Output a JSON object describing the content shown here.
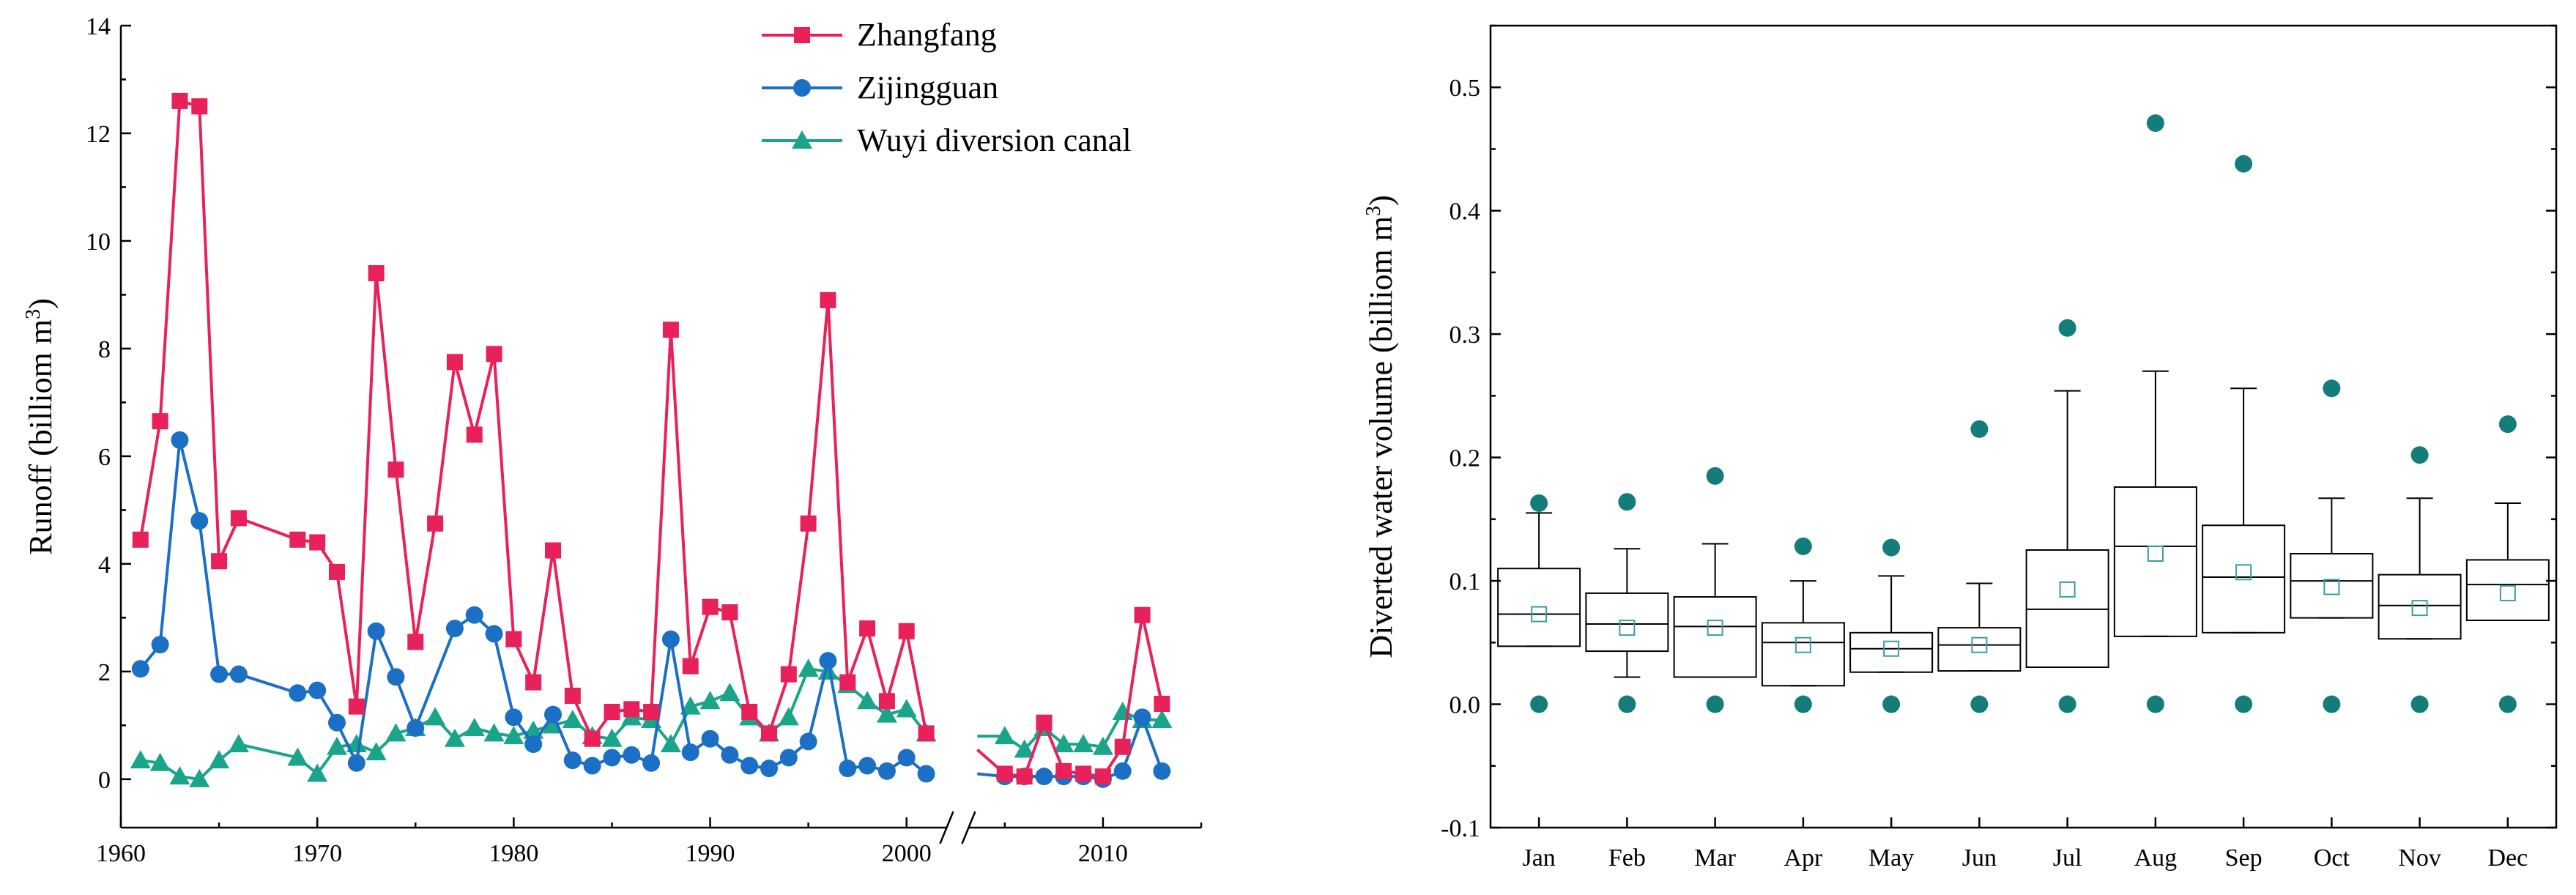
{
  "chart_data": [
    {
      "type": "line",
      "title": "",
      "xlabel": "",
      "ylabel": "Runoff (billiom m3)",
      "ylabel_main": "Runoff  (billiom m",
      "ylabel_sup": "3",
      "ylabel_close": ")",
      "xlim": [
        1960,
        2015
      ],
      "ylim": [
        -0.9,
        14
      ],
      "axis_break": [
        2001,
        2004
      ],
      "xticks": [
        1960,
        1970,
        1980,
        1990,
        2000,
        2010
      ],
      "yticks": [
        0,
        2,
        4,
        6,
        8,
        10,
        12,
        14
      ],
      "grid": false,
      "legend_position": "top-center",
      "series": [
        {
          "name": "Zhangfang",
          "color": "#e8215a",
          "marker": "square",
          "segments": [
            [
              [
                1961,
                4.45
              ],
              [
                1962,
                6.65
              ],
              [
                1963,
                12.6
              ],
              [
                1964,
                12.5
              ],
              [
                1965,
                4.05
              ],
              [
                1966,
                4.85
              ],
              [
                1969,
                4.45
              ],
              [
                1970,
                4.4
              ],
              [
                1971,
                3.85
              ],
              [
                1972,
                1.35
              ],
              [
                1973,
                9.4
              ],
              [
                1974,
                5.75
              ],
              [
                1975,
                2.55
              ],
              [
                1976,
                4.75
              ],
              [
                1977,
                7.75
              ],
              [
                1978,
                6.4
              ],
              [
                1979,
                7.9
              ],
              [
                1980,
                2.6
              ],
              [
                1981,
                1.8
              ],
              [
                1982,
                4.25
              ],
              [
                1983,
                1.55
              ],
              [
                1984,
                0.75
              ],
              [
                1985,
                1.25
              ],
              [
                1986,
                1.3
              ],
              [
                1987,
                1.25
              ],
              [
                1988,
                8.35
              ],
              [
                1989,
                2.1
              ],
              [
                1990,
                3.2
              ],
              [
                1991,
                3.1
              ],
              [
                1992,
                1.25
              ],
              [
                1993,
                0.85
              ],
              [
                1994,
                1.95
              ],
              [
                1995,
                4.75
              ],
              [
                1996,
                8.9
              ],
              [
                1997,
                1.8
              ],
              [
                1998,
                2.8
              ],
              [
                1999,
                1.45
              ],
              [
                2000,
                2.75
              ],
              [
                2001,
                0.85
              ]
            ],
            [
              [
                2003.6,
                0.55
              ],
              [
                2005,
                0.1
              ],
              [
                2006,
                0.05
              ],
              [
                2007,
                1.05
              ],
              [
                2008,
                0.15
              ],
              [
                2009,
                0.1
              ],
              [
                2010,
                0.05
              ],
              [
                2011,
                0.6
              ],
              [
                2012,
                3.05
              ],
              [
                2013,
                1.4
              ]
            ]
          ]
        },
        {
          "name": "Zijingguan",
          "color": "#1b6fc4",
          "marker": "circle",
          "segments": [
            [
              [
                1961,
                2.05
              ],
              [
                1962,
                2.5
              ],
              [
                1963,
                6.3
              ],
              [
                1964,
                4.8
              ],
              [
                1965,
                1.95
              ],
              [
                1966,
                1.95
              ],
              [
                1969,
                1.6
              ],
              [
                1970,
                1.65
              ],
              [
                1971,
                1.05
              ],
              [
                1972,
                0.3
              ],
              [
                1973,
                2.75
              ],
              [
                1974,
                1.9
              ],
              [
                1975,
                0.95
              ],
              [
                1977,
                2.8
              ],
              [
                1978,
                3.05
              ],
              [
                1979,
                2.7
              ],
              [
                1980,
                1.15
              ],
              [
                1981,
                0.65
              ],
              [
                1982,
                1.2
              ],
              [
                1983,
                0.35
              ],
              [
                1984,
                0.25
              ],
              [
                1985,
                0.4
              ],
              [
                1986,
                0.45
              ],
              [
                1987,
                0.3
              ],
              [
                1988,
                2.6
              ],
              [
                1989,
                0.5
              ],
              [
                1990,
                0.75
              ],
              [
                1991,
                0.45
              ],
              [
                1992,
                0.25
              ],
              [
                1993,
                0.2
              ],
              [
                1994,
                0.4
              ],
              [
                1995,
                0.7
              ],
              [
                1996,
                2.2
              ],
              [
                1997,
                0.2
              ],
              [
                1998,
                0.25
              ],
              [
                1999,
                0.15
              ],
              [
                2000,
                0.4
              ],
              [
                2001,
                0.1
              ]
            ],
            [
              [
                2003.6,
                0.1
              ],
              [
                2005,
                0.05
              ],
              [
                2006,
                0.05
              ],
              [
                2007,
                0.05
              ],
              [
                2008,
                0.05
              ],
              [
                2009,
                0.05
              ],
              [
                2010,
                0.0
              ],
              [
                2011,
                0.15
              ],
              [
                2012,
                1.15
              ],
              [
                2013,
                0.15
              ]
            ]
          ]
        },
        {
          "name": "Wuyi diversion canal",
          "color": "#1aa58a",
          "marker": "triangle",
          "segments": [
            [
              [
                1961,
                0.35
              ],
              [
                1962,
                0.3
              ],
              [
                1963,
                0.05
              ],
              [
                1964,
                0.0
              ],
              [
                1965,
                0.35
              ],
              [
                1966,
                0.65
              ],
              [
                1969,
                0.4
              ],
              [
                1970,
                0.1
              ],
              [
                1971,
                0.6
              ],
              [
                1972,
                0.65
              ],
              [
                1973,
                0.5
              ],
              [
                1974,
                0.85
              ],
              [
                1975,
                0.95
              ],
              [
                1976,
                1.15
              ],
              [
                1977,
                0.75
              ],
              [
                1978,
                0.95
              ],
              [
                1979,
                0.85
              ],
              [
                1980,
                0.8
              ],
              [
                1981,
                0.9
              ],
              [
                1982,
                1.0
              ],
              [
                1983,
                1.1
              ],
              [
                1984,
                0.8
              ],
              [
                1985,
                0.75
              ],
              [
                1986,
                1.15
              ],
              [
                1987,
                1.1
              ],
              [
                1988,
                0.65
              ],
              [
                1989,
                1.35
              ],
              [
                1990,
                1.45
              ],
              [
                1991,
                1.6
              ],
              [
                1992,
                1.15
              ],
              [
                1993,
                0.85
              ],
              [
                1994,
                1.15
              ],
              [
                1995,
                2.05
              ],
              [
                1996,
                2.0
              ],
              [
                1997,
                1.75
              ],
              [
                1998,
                1.45
              ],
              [
                1999,
                1.2
              ],
              [
                2000,
                1.3
              ],
              [
                2001,
                0.85
              ]
            ],
            [
              [
                2003.6,
                0.8
              ],
              [
                2005,
                0.8
              ],
              [
                2006,
                0.55
              ],
              [
                2007,
                0.95
              ],
              [
                2008,
                0.65
              ],
              [
                2009,
                0.65
              ],
              [
                2010,
                0.6
              ],
              [
                2011,
                1.25
              ],
              [
                2012,
                1.1
              ],
              [
                2013,
                1.1
              ]
            ]
          ]
        }
      ]
    },
    {
      "type": "box",
      "title": "",
      "xlabel": "",
      "ylabel": "Diverted water volume (billiom m3)",
      "ylabel_main": "Diverted water volume (billiom m",
      "ylabel_sup": "3",
      "ylabel_close": ")",
      "ylim": [
        -0.1,
        0.55
      ],
      "yticks": [
        -0.1,
        0.0,
        0.1,
        0.2,
        0.3,
        0.4,
        0.5
      ],
      "ytick_labels": [
        "-0.1",
        "0.0",
        "0.1",
        "0.2",
        "0.3",
        "0.4",
        "0.5"
      ],
      "grid": false,
      "box_color": "#000000",
      "point_color": "#147d7a",
      "mean_color": "#3a9e9c",
      "categories": [
        "Jan",
        "Feb",
        "Mar",
        "Apr",
        "May",
        "Jun",
        "Jul",
        "Aug",
        "Sep",
        "Oct",
        "Nov",
        "Dec"
      ],
      "boxes": [
        {
          "min": 0.0,
          "whisker_low": 0.047,
          "q1": 0.047,
          "median": 0.073,
          "q3": 0.11,
          "whisker_high": 0.155,
          "max": 0.163,
          "mean": 0.073
        },
        {
          "min": 0.0,
          "whisker_low": 0.022,
          "q1": 0.043,
          "median": 0.065,
          "q3": 0.09,
          "whisker_high": 0.126,
          "max": 0.164,
          "mean": 0.062
        },
        {
          "min": 0.0,
          "whisker_low": 0.022,
          "q1": 0.022,
          "median": 0.063,
          "q3": 0.087,
          "whisker_high": 0.13,
          "max": 0.185,
          "mean": 0.062
        },
        {
          "min": 0.0,
          "whisker_low": 0.015,
          "q1": 0.015,
          "median": 0.05,
          "q3": 0.066,
          "whisker_high": 0.1,
          "max": 0.128,
          "mean": 0.048
        },
        {
          "min": 0.0,
          "whisker_low": 0.026,
          "q1": 0.026,
          "median": 0.045,
          "q3": 0.058,
          "whisker_high": 0.104,
          "max": 0.127,
          "mean": 0.045
        },
        {
          "min": 0.0,
          "whisker_low": 0.027,
          "q1": 0.027,
          "median": 0.048,
          "q3": 0.062,
          "whisker_high": 0.098,
          "max": 0.223,
          "mean": 0.048
        },
        {
          "min": 0.0,
          "whisker_low": 0.03,
          "q1": 0.03,
          "median": 0.077,
          "q3": 0.125,
          "whisker_high": 0.254,
          "max": 0.305,
          "mean": 0.093
        },
        {
          "min": 0.0,
          "whisker_low": 0.055,
          "q1": 0.055,
          "median": 0.128,
          "q3": 0.176,
          "whisker_high": 0.27,
          "max": 0.471,
          "mean": 0.122
        },
        {
          "min": 0.0,
          "whisker_low": 0.058,
          "q1": 0.058,
          "median": 0.103,
          "q3": 0.145,
          "whisker_high": 0.256,
          "max": 0.438,
          "mean": 0.107
        },
        {
          "min": 0.0,
          "whisker_low": 0.07,
          "q1": 0.07,
          "median": 0.1,
          "q3": 0.122,
          "whisker_high": 0.167,
          "max": 0.256,
          "mean": 0.095
        },
        {
          "min": 0.0,
          "whisker_low": 0.053,
          "q1": 0.053,
          "median": 0.08,
          "q3": 0.105,
          "whisker_high": 0.167,
          "max": 0.202,
          "mean": 0.078
        },
        {
          "min": 0.0,
          "whisker_low": 0.068,
          "q1": 0.068,
          "median": 0.097,
          "q3": 0.117,
          "whisker_high": 0.163,
          "max": 0.227,
          "mean": 0.09
        }
      ]
    }
  ]
}
